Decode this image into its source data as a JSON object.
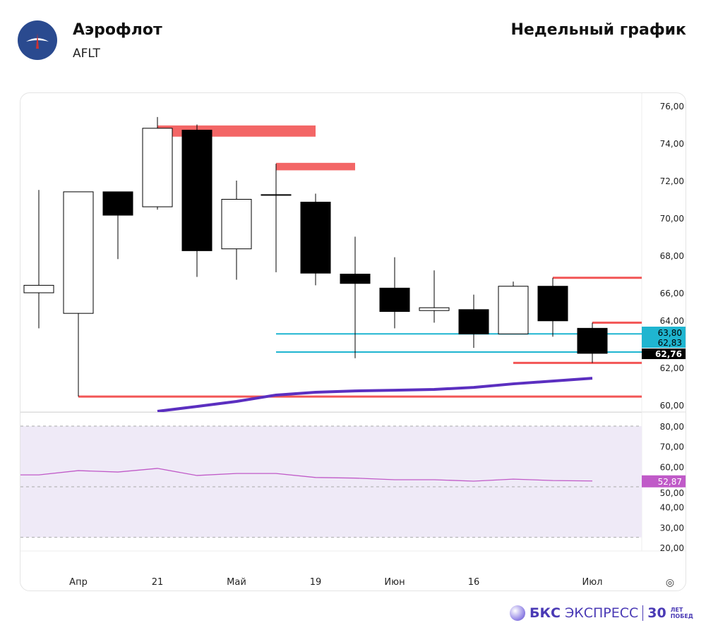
{
  "header": {
    "company": "Аэрофлот",
    "ticker": "AFLT",
    "title": "Недельный график"
  },
  "brand": {
    "name_bold": "БКС",
    "name": "ЭКСПРЕСС",
    "years": "30",
    "years_caption_1": "ЛЕТ",
    "years_caption_2": "ПОБЕД"
  },
  "chart_data": [
    {
      "type": "candlestick",
      "x_tick_labels": [
        "Апр",
        "21",
        "Май",
        "19",
        "Июн",
        "16",
        "Июл"
      ],
      "x_tick_index": [
        1,
        3,
        5,
        7,
        9,
        11,
        14
      ],
      "y_ticks": [
        "76,00",
        "74,00",
        "72,00",
        "70,00",
        "68,00",
        "66,00",
        "64,00",
        "62,00",
        "60,00"
      ],
      "ylim": [
        60,
        76
      ],
      "candles": [
        {
          "o": 66.0,
          "c": 66.4,
          "h": 71.5,
          "l": 64.1
        },
        {
          "o": 64.9,
          "c": 71.4,
          "h": 71.4,
          "l": 60.45
        },
        {
          "o": 71.4,
          "c": 70.15,
          "h": 71.4,
          "l": 67.8
        },
        {
          "o": 70.6,
          "c": 74.8,
          "h": 75.4,
          "l": 70.45
        },
        {
          "o": 74.7,
          "c": 68.25,
          "h": 75.0,
          "l": 66.85
        },
        {
          "o": 68.35,
          "c": 71.0,
          "h": 72.0,
          "l": 66.7
        },
        {
          "o": 71.25,
          "c": 71.25,
          "h": 72.9,
          "l": 67.1
        },
        {
          "o": 70.85,
          "c": 67.05,
          "h": 71.3,
          "l": 66.4
        },
        {
          "o": 67.0,
          "c": 66.5,
          "h": 69.0,
          "l": 62.5
        },
        {
          "o": 66.25,
          "c": 65.0,
          "h": 67.9,
          "l": 64.1
        },
        {
          "o": 65.05,
          "c": 65.2,
          "h": 67.2,
          "l": 64.4
        },
        {
          "o": 65.1,
          "c": 63.8,
          "h": 65.9,
          "l": 63.05
        },
        {
          "o": 63.8,
          "c": 66.35,
          "h": 66.6,
          "l": 63.8
        },
        {
          "o": 66.35,
          "c": 64.5,
          "h": 66.8,
          "l": 63.65
        },
        {
          "o": 64.1,
          "c": 62.76,
          "h": 64.4,
          "l": 62.25
        }
      ],
      "resistance_zones": [
        {
          "from": 3,
          "to": 7,
          "low": 74.35,
          "high": 74.95
        },
        {
          "from": 6,
          "to": 8,
          "low": 72.55,
          "high": 72.95
        }
      ],
      "red_levels": [
        {
          "from": 13,
          "value": 66.8
        },
        {
          "from": 14,
          "value": 64.4
        },
        {
          "from": 12,
          "value": 62.25
        },
        {
          "from": 1,
          "value": 60.45
        }
      ],
      "cyan_levels": [
        {
          "from": 6,
          "value": 63.8,
          "label": "63,80"
        },
        {
          "from": 6,
          "value": 62.83,
          "label": "62,83"
        }
      ],
      "last_price": {
        "value": 62.76,
        "label": "62,76"
      },
      "moving_average": [
        null,
        null,
        null,
        59.66,
        59.92,
        60.19,
        60.53,
        60.68,
        60.75,
        60.79,
        60.83,
        60.94,
        61.13,
        61.28,
        61.43
      ],
      "colors": {
        "red": "#f25555",
        "cyan": "#1fb5d0",
        "ma": "#5b2fc0",
        "rsi": "#c05ac8",
        "up": "#ffffff",
        "down": "#000000"
      }
    },
    {
      "type": "line",
      "name": "RSI",
      "y_ticks": [
        "80,00",
        "70,00",
        "60,00",
        "50,00",
        "40,00",
        "30,00",
        "20,00"
      ],
      "ylim": [
        20,
        80
      ],
      "band": [
        25,
        80
      ],
      "dashed": [
        80,
        50,
        25
      ],
      "values": [
        55.9,
        58.0,
        57.3,
        59.1,
        55.6,
        56.6,
        56.6,
        54.6,
        54.3,
        53.5,
        53.5,
        52.8,
        53.8,
        53.1,
        52.87
      ],
      "first_value": 55.9,
      "last_label": "52,87"
    }
  ]
}
